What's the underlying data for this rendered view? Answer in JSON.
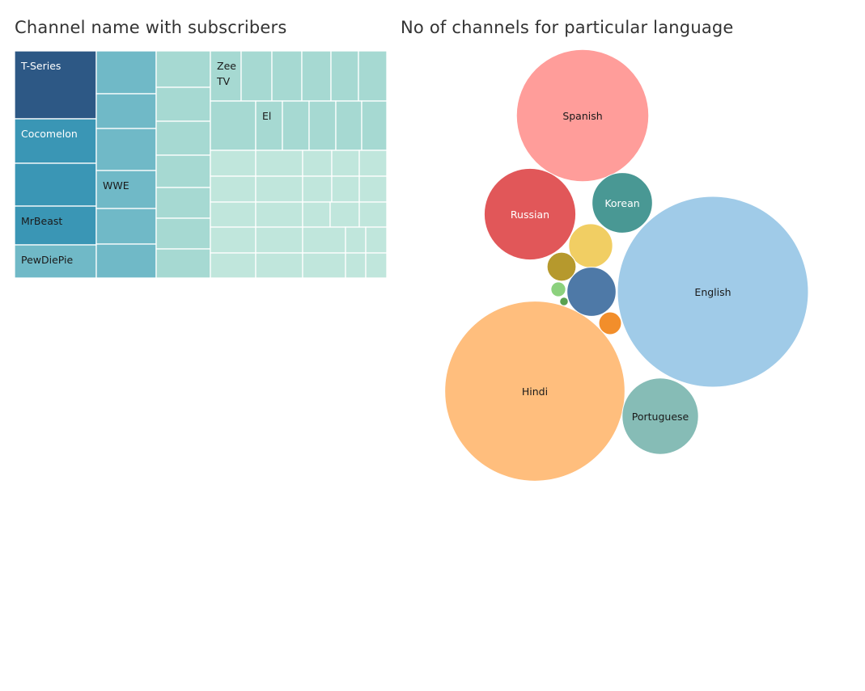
{
  "treemap": {
    "title": "Channel name with subscribers",
    "chart_data": {
      "type": "treemap",
      "measure": "subscribers",
      "labeled_items": [
        "T-Series",
        "Cocomelon",
        "MrBeast",
        "PewDiePie",
        "WWE",
        "Zee TV",
        "El"
      ],
      "colors": {
        "largest": "#2d5885",
        "large": "#3a96b5",
        "medium": "#70b9c7",
        "small": "#a6d9d2",
        "smallest": "#c0e6dc"
      }
    }
  },
  "bubbles": {
    "title": "No of channels for particular language",
    "chart_data": {
      "type": "bubble",
      "measure": "number of channels",
      "series": [
        {
          "label": "English",
          "size": 1.0,
          "color": "#a0cbe8"
        },
        {
          "label": "Hindi",
          "size": 0.89,
          "color": "#ffbe7d"
        },
        {
          "label": "Spanish",
          "size": 0.48,
          "color": "#ff9d9a"
        },
        {
          "label": "Russian",
          "size": 0.23,
          "color": "#e15759"
        },
        {
          "label": "Portuguese",
          "size": 0.16,
          "color": "#86bcb6"
        },
        {
          "label": "Korean",
          "size": 0.1,
          "color": "#499894"
        },
        {
          "label": "",
          "size": 0.053,
          "color": "#f1ce63"
        },
        {
          "label": "",
          "size": 0.066,
          "color": "#4e79a7"
        },
        {
          "label": "",
          "size": 0.023,
          "color": "#b6992d"
        },
        {
          "label": "",
          "size": 0.014,
          "color": "#f28e2b"
        },
        {
          "label": "",
          "size": 0.006,
          "color": "#8cd17d"
        },
        {
          "label": "",
          "size": 0.002,
          "color": "#59a14f"
        }
      ]
    }
  }
}
